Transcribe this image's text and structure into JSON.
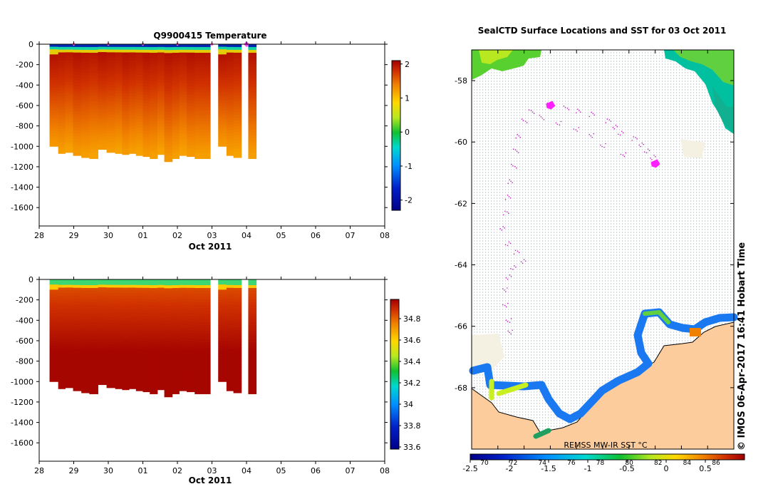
{
  "chart_data": [
    {
      "type": "heatmap",
      "title": "Q9900415  Temperature",
      "xlabel": "Oct 2011",
      "ylabel": "",
      "x_ticks": [
        "28",
        "29",
        "30",
        "01",
        "02",
        "03",
        "04",
        "05",
        "06",
        "07",
        "08"
      ],
      "xlim": [
        0,
        10
      ],
      "y_ticks": [
        "0",
        "-200",
        "-400",
        "-600",
        "-800",
        "-1000",
        "-1200",
        "-1400",
        "-1600"
      ],
      "ylim": [
        -1780,
        0
      ],
      "colorbar": {
        "ticks": [
          "2",
          "1",
          "0",
          "-1",
          "-2"
        ],
        "range": [
          -2.3,
          2.1
        ]
      },
      "surface_markers_days": [
        1.0,
        2.0,
        3.0,
        4.0,
        5.0,
        6.0
      ],
      "profiles": {
        "start_days": [
          0.3,
          0.55,
          0.75,
          0.98,
          1.22,
          1.45,
          1.7,
          1.95,
          2.2,
          2.4,
          2.6,
          2.8,
          3.0,
          3.2,
          3.42,
          3.62,
          3.85,
          4.05,
          4.27,
          4.5,
          4.95,
          5.18,
          5.42,
          5.62,
          5.85,
          6.05
        ],
        "end_days": [
          0.55,
          0.75,
          0.98,
          1.22,
          1.45,
          1.7,
          1.95,
          2.2,
          2.4,
          2.6,
          2.8,
          3.0,
          3.2,
          3.42,
          3.62,
          3.85,
          4.05,
          4.27,
          4.5,
          4.95,
          5.18,
          5.42,
          5.62,
          5.85,
          6.05,
          6.28
        ],
        "max_depth": [
          1000,
          1070,
          1060,
          1090,
          1110,
          1120,
          1030,
          1060,
          1070,
          1080,
          1070,
          1090,
          1100,
          1120,
          1080,
          1150,
          1120,
          1090,
          1100,
          1120,
          0,
          1000,
          1090,
          1110,
          0,
          1120
        ]
      },
      "gap_intervals_days": [
        [
          4.55,
          4.95
        ],
        [
          5.64,
          5.84
        ]
      ]
    },
    {
      "type": "heatmap",
      "title": "",
      "xlabel": "Oct 2011",
      "ylabel": "",
      "x_ticks": [
        "28",
        "29",
        "30",
        "01",
        "02",
        "03",
        "04",
        "05",
        "06",
        "07",
        "08"
      ],
      "xlim": [
        0,
        10
      ],
      "y_ticks": [
        "0",
        "-200",
        "-400",
        "-600",
        "-800",
        "-1000",
        "-1200",
        "-1400",
        "-1600"
      ],
      "ylim": [
        -1780,
        0
      ],
      "colorbar": {
        "ticks": [
          "34.8",
          "34.6",
          "34.4",
          "34.2",
          "34",
          "33.8",
          "33.6"
        ],
        "range": [
          33.58,
          34.98
        ]
      },
      "profiles": {
        "start_days": [
          0.3,
          0.55,
          0.75,
          0.98,
          1.22,
          1.45,
          1.7,
          1.95,
          2.2,
          2.4,
          2.6,
          2.8,
          3.0,
          3.2,
          3.42,
          3.62,
          3.85,
          4.05,
          4.27,
          4.5,
          4.95,
          5.18,
          5.42,
          5.62,
          5.85,
          6.05
        ],
        "end_days": [
          0.55,
          0.75,
          0.98,
          1.22,
          1.45,
          1.7,
          1.95,
          2.2,
          2.4,
          2.6,
          2.8,
          3.0,
          3.2,
          3.42,
          3.62,
          3.85,
          4.05,
          4.27,
          4.5,
          4.95,
          5.18,
          5.42,
          5.62,
          5.85,
          6.05,
          6.28
        ],
        "max_depth": [
          1000,
          1070,
          1060,
          1090,
          1110,
          1120,
          1030,
          1060,
          1070,
          1080,
          1070,
          1090,
          1100,
          1120,
          1080,
          1150,
          1120,
          1090,
          1100,
          1120,
          0,
          1000,
          1090,
          1110,
          0,
          1120
        ]
      },
      "gap_intervals_days": [
        [
          4.55,
          4.95
        ],
        [
          5.64,
          5.84
        ]
      ]
    },
    {
      "type": "scatter",
      "title": "SealCTD Surface Locations and SST for 03 Oct 2011",
      "y_ticks": [
        "-58",
        "-60",
        "-62",
        "-64",
        "-66",
        "-68"
      ],
      "lat_range": [
        -70,
        -57
      ],
      "colorbar": {
        "label": "REMSS MW-IR SST °C",
        "lower_ticks": [
          "-2.5",
          "-2",
          "-1.5",
          "-1",
          "-0.5",
          "0",
          "0.5"
        ],
        "upper_ticks": [
          "70",
          "72",
          "74",
          "76",
          "78",
          "80",
          "82",
          "84",
          "86"
        ],
        "range": [
          -2.5,
          1.0
        ]
      },
      "highlight_positions_lat_lon": [
        [
          -58.8,
          0.3
        ],
        [
          -60.7,
          0.7
        ]
      ],
      "track_points_lat_lon": [
        [
          -58.8,
          0.3
        ],
        [
          -58.9,
          0.36
        ],
        [
          -59.0,
          0.41
        ],
        [
          -59.1,
          0.46
        ],
        [
          -59.3,
          0.52
        ],
        [
          -59.5,
          0.55
        ],
        [
          -59.7,
          0.57
        ],
        [
          -59.9,
          0.62
        ],
        [
          -60.1,
          0.65
        ],
        [
          -60.3,
          0.67
        ],
        [
          -60.5,
          0.69
        ],
        [
          -60.7,
          0.7
        ],
        [
          -60.4,
          0.58
        ],
        [
          -60.1,
          0.5
        ],
        [
          -59.8,
          0.46
        ],
        [
          -59.6,
          0.4
        ],
        [
          -59.4,
          0.33
        ],
        [
          -59.2,
          0.27
        ],
        [
          -59.0,
          0.23
        ],
        [
          -59.3,
          0.2
        ],
        [
          -59.8,
          0.18
        ],
        [
          -60.3,
          0.17
        ],
        [
          -60.8,
          0.16
        ],
        [
          -61.3,
          0.15
        ],
        [
          -61.8,
          0.14
        ],
        [
          -62.3,
          0.13
        ],
        [
          -62.8,
          0.12
        ],
        [
          -63.3,
          0.14
        ],
        [
          -63.6,
          0.17
        ],
        [
          -63.9,
          0.2
        ],
        [
          -64.1,
          0.16
        ],
        [
          -64.4,
          0.14
        ],
        [
          -64.8,
          0.13
        ],
        [
          -65.3,
          0.13
        ],
        [
          -65.8,
          0.14
        ],
        [
          -66.2,
          0.15
        ]
      ],
      "watermark": "©  IMOS 06-Apr-2017 16:41 Hobart Time"
    }
  ]
}
